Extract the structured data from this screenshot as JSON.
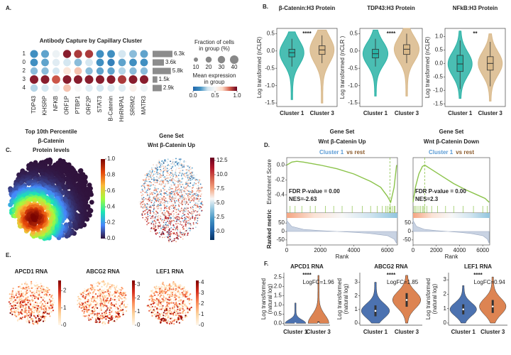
{
  "panels": [
    "A.",
    "B.",
    "C.",
    "D.",
    "E.",
    "F."
  ],
  "chart_data": [
    {
      "type": "dotplot",
      "title": "Antibody Capture by Capillary Cluster",
      "categories": [
        "1",
        "0",
        "2",
        "3",
        "4"
      ],
      "columns": [
        "TDP43",
        "KHSRP",
        "NFKB",
        "ORF1P",
        "PTBP1",
        "ORF2P",
        "STAT3",
        "B-Catenin",
        "HnRNPA1",
        "SRRM2",
        "MATR3"
      ],
      "values": [
        [
          0.15,
          0.2,
          0.45,
          0.95,
          0.9,
          0.9,
          0.15,
          0.15,
          0.35,
          0.25,
          0.2
        ],
        [
          0.15,
          0.2,
          0.4,
          0.35,
          0.25,
          0.35,
          0.15,
          0.1,
          0.2,
          0.15,
          0.15
        ],
        [
          0.25,
          0.25,
          0.35,
          0.6,
          0.7,
          0.25,
          0.2,
          0.2,
          0.3,
          0.25,
          0.25
        ],
        [
          0.95,
          0.95,
          0.85,
          0.95,
          0.95,
          0.95,
          0.95,
          0.95,
          0.9,
          0.95,
          0.95
        ],
        [
          0.3,
          0.35,
          0.45,
          0.7,
          0.5,
          0.4,
          0.35,
          0.4,
          0.4,
          0.55,
          0.45
        ]
      ],
      "fractions": [
        [
          34,
          34,
          32,
          36,
          36,
          36,
          33,
          33,
          33,
          33,
          33
        ],
        [
          32,
          32,
          30,
          32,
          32,
          32,
          32,
          30,
          32,
          32,
          32
        ],
        [
          30,
          30,
          28,
          32,
          32,
          30,
          30,
          30,
          30,
          30,
          30
        ],
        [
          40,
          40,
          38,
          40,
          40,
          40,
          40,
          40,
          40,
          40,
          40
        ],
        [
          30,
          30,
          30,
          32,
          30,
          30,
          30,
          30,
          30,
          30,
          30
        ]
      ],
      "colormap": [
        "#2166ac",
        "#4393c3",
        "#d1e5f0",
        "#f7f7f7",
        "#fddbc7",
        "#d6604d",
        "#67001f"
      ],
      "clim": [
        0,
        1
      ],
      "counts": {
        "values": [
          6300,
          3600,
          5800,
          1500,
          2900
        ],
        "value_labels": [
          "6.3k",
          "3.6k",
          "5.8k",
          "1.5k",
          "2.9k"
        ],
        "color": "#8c8c8c"
      },
      "size_legend": {
        "title_lines": [
          "Fraction of cells",
          "in group (%)"
        ],
        "values": [
          10,
          20,
          30,
          40
        ]
      },
      "color_legend": {
        "title_lines": [
          "Mean expression",
          "in group"
        ],
        "ticks": [
          {
            "value": 0,
            "label": "0.0"
          },
          0.5,
          {
            "value": 1,
            "label": "1.0"
          }
        ]
      }
    },
    {
      "type": "box_violin",
      "title": "β-Catenin:H3 Protein",
      "ylabel": "Log transformed (nCLR)",
      "categories": [
        "Cluster 1",
        "Cluster 3"
      ],
      "colors": [
        "#2ab3a6",
        "#d9b98a"
      ],
      "min": [
        -1.4,
        -1.5
      ],
      "whisker_low": [
        -0.45,
        -0.35
      ],
      "q1": [
        -0.17,
        -0.1
      ],
      "median": [
        -0.05,
        0.03
      ],
      "q3": [
        0.05,
        0.15
      ],
      "whisker_high": [
        0.35,
        0.45
      ],
      "max": [
        0.55,
        0.6
      ],
      "ylim": [
        -1.6,
        0.65
      ],
      "yticks": [
        0.5,
        {
          "value": 0,
          "label": "0.0"
        },
        -0.5,
        {
          "value": -1,
          "label": "-1.0"
        },
        -1.5
      ],
      "annotation": "****"
    },
    {
      "type": "box_violin",
      "title": "TDP43:H3 Protein",
      "ylabel": "Log transformed (nCLR )",
      "categories": [
        "Cluster 1",
        "Cluster 3"
      ],
      "colors": [
        "#2ab3a6",
        "#d9b98a"
      ],
      "min": [
        -1.3,
        -1.3
      ],
      "whisker_low": [
        -0.45,
        -0.35
      ],
      "q1": [
        -0.2,
        -0.1
      ],
      "median": [
        -0.08,
        0.05
      ],
      "q3": [
        0.05,
        0.18
      ],
      "whisker_high": [
        0.35,
        0.5
      ],
      "max": [
        0.6,
        0.65
      ],
      "ylim": [
        -1.6,
        0.65
      ],
      "yticks": [
        0.5,
        {
          "value": 0,
          "label": "0.0"
        },
        -0.5,
        {
          "value": -1,
          "label": "-1.0"
        },
        -1.5
      ],
      "annotation": "****"
    },
    {
      "type": "box_violin",
      "title": "NFkB:H3 Protein",
      "ylabel": "Log transformed (nCLR)",
      "categories": [
        "Cluster 1",
        "Cluster 3"
      ],
      "colors": [
        "#2ab3a6",
        "#d9b98a"
      ],
      "min": [
        -1.3,
        -1.4
      ],
      "whisker_low": [
        -0.95,
        -0.85
      ],
      "q1": [
        -0.3,
        -0.25
      ],
      "median": [
        -0.02,
        0.0
      ],
      "q3": [
        0.3,
        0.25
      ],
      "whisker_high": [
        0.85,
        0.8
      ],
      "max": [
        1.2,
        1.1
      ],
      "ylim": [
        -1.6,
        1.3
      ],
      "yticks": [
        {
          "value": 1,
          "label": "1.0"
        },
        0.5,
        {
          "value": 0,
          "label": "0.0"
        },
        -0.5,
        {
          "value": -1,
          "label": "-1.0"
        },
        -1.5
      ],
      "annotation": "**"
    },
    {
      "type": "density_map",
      "title_lines": [
        "Top 10th Percentile",
        "β-Catenin",
        "Protein levels"
      ],
      "colormap": [
        "#30123b",
        "#4686fb",
        "#1be5b5",
        "#a2fc3c",
        "#fbb938",
        "#e4460a",
        "#7a0402"
      ],
      "clim": [
        0,
        1
      ],
      "cticks": [
        {
          "value": 0,
          "label": "0.0"
        },
        0.2,
        0.4,
        0.6,
        0.8,
        {
          "value": 1,
          "label": "1.0"
        }
      ]
    },
    {
      "type": "density_map",
      "title_lines": [
        "Gene Set",
        "Wnt β-Catenin Up"
      ],
      "colormap": [
        "#053061",
        "#2166ac",
        "#4393c3",
        "#92c5de",
        "#f7f7f7",
        "#f4a582",
        "#d6604d",
        "#b2182b",
        "#67001f"
      ],
      "clim": [
        -1.5,
        13
      ],
      "cticks": [
        {
          "value": 0,
          "label": "0.0"
        },
        2.5,
        {
          "value": 5,
          "label": "5.0"
        },
        7.5,
        {
          "value": 10,
          "label": "10.0"
        },
        12.5
      ]
    },
    {
      "type": "gsea",
      "title_lines": [
        "Gene Set",
        "Wnt β-Catenin Up"
      ],
      "subtitle": [
        "Cluster 1",
        "vs rest"
      ],
      "subtitle_colors": [
        "#5b9bd5",
        "#8b5a2b"
      ],
      "ylabel": "Enrichment Score",
      "ylabel2": "Ranked metric",
      "xlabel": "Rank",
      "color": "#8bc34a",
      "x": [
        0,
        300,
        600,
        1000,
        2000,
        3000,
        4000,
        5000,
        5600,
        6000,
        6200,
        6400,
        6550
      ],
      "values": [
        0,
        0.04,
        0.05,
        0.04,
        0.0,
        -0.05,
        -0.12,
        -0.22,
        -0.3,
        -0.42,
        -0.5,
        -0.3,
        0
      ],
      "ylim": [
        -0.55,
        0.1
      ],
      "yticks": [
        {
          "value": 0,
          "label": "0.0"
        },
        -0.2,
        -0.4
      ],
      "leading_edge": 6150,
      "hits": [
        200,
        500,
        900,
        1400,
        1700,
        2300,
        2800,
        3300,
        3900,
        4500,
        5000,
        5400,
        5700,
        5900,
        6000,
        6100,
        6200,
        6300,
        6400,
        6450
      ],
      "metric": {
        "x": [
          0,
          300,
          1000,
          2000,
          3000,
          4000,
          5000,
          6000,
          6400,
          6550
        ],
        "values": [
          65,
          30,
          12,
          5,
          0,
          -5,
          -12,
          -25,
          -45,
          -70
        ],
        "ylim": [
          -80,
          80
        ],
        "yticks": [
          50,
          0,
          -50
        ]
      },
      "xlim": [
        0,
        6600
      ],
      "xticks": [
        0,
        2000,
        4000,
        6000
      ],
      "annotations": [
        "FDR P-value = 0.00",
        "NES=-2.63"
      ]
    },
    {
      "type": "gsea",
      "title_lines": [
        "Gene Set",
        "Wnt β-Catenin Down"
      ],
      "subtitle": [
        "Cluster 1",
        "vs rest"
      ],
      "subtitle_colors": [
        "#5b9bd5",
        "#8b5a2b"
      ],
      "xlabel": "Rank",
      "color": "#8bc34a",
      "x": [
        0,
        200,
        500,
        800,
        1000,
        1500,
        2500,
        3500,
        4500,
        5500,
        6200,
        6550
      ],
      "values": [
        0,
        0.2,
        0.38,
        0.48,
        0.5,
        0.45,
        0.35,
        0.25,
        0.17,
        0.1,
        0.05,
        0
      ],
      "ylim": [
        -0.05,
        0.6
      ],
      "leading_edge": 1000,
      "hits": [
        100,
        200,
        350,
        500,
        650,
        800,
        900,
        1000,
        1200,
        1600,
        2100,
        2800,
        3500,
        4300,
        5200,
        6000,
        6400
      ],
      "metric": {
        "x": [
          0,
          300,
          1000,
          2000,
          3000,
          4000,
          5000,
          6000,
          6400,
          6550
        ],
        "values": [
          65,
          30,
          12,
          5,
          0,
          -5,
          -12,
          -25,
          -45,
          -70
        ],
        "ylim": [
          -80,
          80
        ],
        "yticks": [
          50,
          0,
          -50
        ]
      },
      "xlim": [
        0,
        6600
      ],
      "xticks": [
        0,
        2000,
        4000,
        6000
      ],
      "annotations": [
        "FDR P-value = 0.00",
        "NES=2.3"
      ]
    },
    {
      "type": "spatial_map",
      "title": "APCD1 RNA",
      "colormap": [
        "#fff7ec",
        "#fdd49e",
        "#fc8d59",
        "#d7301f",
        "#7f0000"
      ],
      "clim": [
        0,
        2.6
      ],
      "cticks": [
        0,
        1,
        2
      ]
    },
    {
      "type": "spatial_map",
      "title": "ABCG2 RNA",
      "colormap": [
        "#fff7ec",
        "#fdd49e",
        "#fc8d59",
        "#d7301f",
        "#7f0000"
      ],
      "clim": [
        0,
        3.3
      ],
      "cticks": [
        0,
        1,
        2,
        3
      ]
    },
    {
      "type": "spatial_map",
      "title": "LEF1 RNA",
      "colormap": [
        "#fff7ec",
        "#fdd49e",
        "#fc8d59",
        "#d7301f",
        "#7f0000"
      ],
      "clim": [
        0,
        4.2
      ],
      "cticks": [
        0,
        1,
        2,
        3,
        4
      ]
    },
    {
      "type": "violin",
      "title": "APCD1 RNA",
      "ylabel_lines": [
        "Log transformed",
        "(natural log)"
      ],
      "categories": [
        "Cluster 1",
        "Cluster 3"
      ],
      "colors": [
        "#4c72b0",
        "#dd8452"
      ],
      "min": [
        0,
        0
      ],
      "q1": [
        0,
        0
      ],
      "median": [
        0,
        0
      ],
      "q3": [
        0,
        0.1
      ],
      "max": [
        1.1,
        2.6
      ],
      "ylim": [
        -0.1,
        2.75
      ],
      "yticks": [
        {
          "value": 0,
          "label": "0.0"
        },
        0.5,
        {
          "value": 1,
          "label": "1.0"
        },
        1.5,
        {
          "value": 2,
          "label": "2.0"
        },
        2.5
      ],
      "annotation": "****",
      "logfc": "LogFC=1.96"
    },
    {
      "type": "violin",
      "title": "ABCG2 RNA",
      "ylabel_lines": [
        "Log transformed",
        "(natural log)"
      ],
      "categories": [
        "Cluster 1",
        "Cluster 3"
      ],
      "colors": [
        "#4c72b0",
        "#dd8452"
      ],
      "min": [
        0,
        0
      ],
      "q1": [
        0.5,
        1.2
      ],
      "median": [
        0.9,
        1.7
      ],
      "q3": [
        1.3,
        2.2
      ],
      "max": [
        3.0,
        3.5
      ],
      "ylim": [
        -0.15,
        3.7
      ],
      "yticks": [
        0,
        1,
        2,
        3
      ],
      "annotation": "****",
      "logfc": "LogFC=1.85"
    },
    {
      "type": "violin",
      "title": "LEF1 RNA",
      "ylabel_lines": [
        "Log transformed",
        "(natural log)"
      ],
      "categories": [
        "Cluster 1",
        "Cluster 3"
      ],
      "colors": [
        "#4c72b0",
        "#dd8452"
      ],
      "min": [
        0,
        0
      ],
      "q1": [
        0.6,
        0.7
      ],
      "median": [
        0.95,
        1.15
      ],
      "q3": [
        1.3,
        1.6
      ],
      "max": [
        2.6,
        3.2
      ],
      "ylim": [
        -0.15,
        3.5
      ],
      "yticks": [
        0,
        1,
        2,
        3
      ],
      "annotation": "****",
      "logfc": "LogFC=0.94"
    }
  ]
}
